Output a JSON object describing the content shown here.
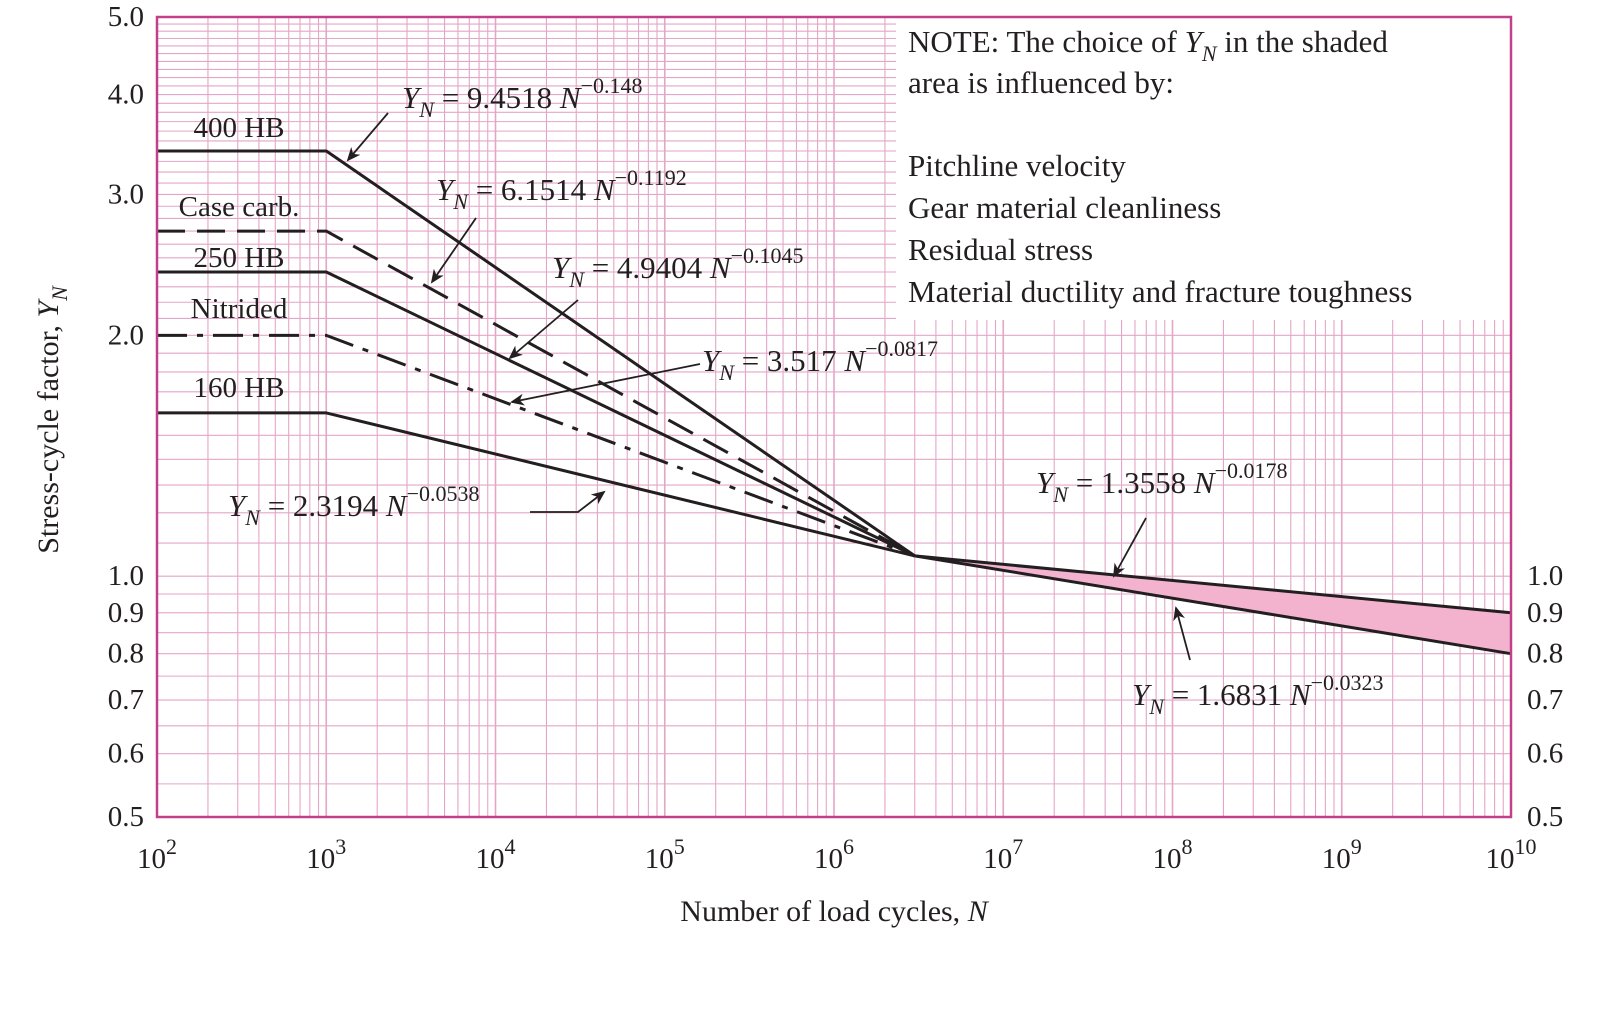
{
  "chart_data": {
    "type": "line",
    "xscale": "log",
    "yscale": "log",
    "xlim": [
      100,
      10000000000
    ],
    "ylim": [
      0.5,
      5.0
    ],
    "xlabel_text": "Number of load cycles, ",
    "xlabel_var": "N",
    "ylabel_text": "Stress-cycle factor, ",
    "ylabel_var": "Y",
    "ylabel_sub": "N",
    "x_ticks": [
      {
        "value": 100,
        "base": "10",
        "exp": "2"
      },
      {
        "value": 1000,
        "base": "10",
        "exp": "3"
      },
      {
        "value": 10000,
        "base": "10",
        "exp": "4"
      },
      {
        "value": 100000,
        "base": "10",
        "exp": "5"
      },
      {
        "value": 1000000,
        "base": "10",
        "exp": "6"
      },
      {
        "value": 10000000,
        "base": "10",
        "exp": "7"
      },
      {
        "value": 100000000,
        "base": "10",
        "exp": "8"
      },
      {
        "value": 1000000000,
        "base": "10",
        "exp": "9"
      },
      {
        "value": 10000000000,
        "base": "10",
        "exp": "10"
      }
    ],
    "y_ticks_left": [
      {
        "value": 5.0,
        "label": "5.0"
      },
      {
        "value": 4.0,
        "label": "4.0"
      },
      {
        "value": 3.0,
        "label": "3.0"
      },
      {
        "value": 2.0,
        "label": "2.0"
      },
      {
        "value": 1.0,
        "label": "1.0"
      },
      {
        "value": 0.9,
        "label": "0.9"
      },
      {
        "value": 0.8,
        "label": "0.8"
      },
      {
        "value": 0.7,
        "label": "0.7"
      },
      {
        "value": 0.6,
        "label": "0.6"
      },
      {
        "value": 0.5,
        "label": "0.5"
      }
    ],
    "y_ticks_right": [
      {
        "value": 1.0,
        "label": "1.0"
      },
      {
        "value": 0.9,
        "label": "0.9"
      },
      {
        "value": 0.8,
        "label": "0.8"
      },
      {
        "value": 0.7,
        "label": "0.7"
      },
      {
        "value": 0.6,
        "label": "0.6"
      },
      {
        "value": 0.5,
        "label": "0.5"
      }
    ],
    "grid": true,
    "series": [
      {
        "name": "400 HB",
        "style": "solid",
        "x": [
          100,
          1000,
          3000000
        ],
        "y": [
          3.4,
          3.4,
          1.06
        ]
      },
      {
        "name": "Case carb.",
        "style": "dashed",
        "x": [
          100,
          1000,
          3000000
        ],
        "y": [
          2.7,
          2.7,
          1.06
        ]
      },
      {
        "name": "250 HB",
        "style": "solid",
        "x": [
          100,
          1000,
          3000000
        ],
        "y": [
          2.4,
          2.4,
          1.06
        ]
      },
      {
        "name": "Nitrided",
        "style": "dashdot",
        "x": [
          100,
          1000,
          3000000
        ],
        "y": [
          2.0,
          2.0,
          1.06
        ]
      },
      {
        "name": "160 HB",
        "style": "solid",
        "x": [
          100,
          1000,
          3000000
        ],
        "y": [
          1.6,
          1.6,
          1.06
        ]
      },
      {
        "name": "",
        "style": "solid",
        "x": [
          3000000,
          10000000000
        ],
        "y": [
          1.06,
          0.9
        ]
      },
      {
        "name": "",
        "style": "solid",
        "x": [
          3000000,
          10000000000
        ],
        "y": [
          1.06,
          0.8
        ]
      }
    ],
    "shaded_region": {
      "x": [
        3000000,
        10000000000
      ],
      "y_upper": [
        1.06,
        0.9
      ],
      "y_lower": [
        1.06,
        0.8
      ]
    },
    "equations": [
      {
        "prefix": "Y",
        "sub": "N",
        "mid": " = 9.4518 ",
        "var": "N",
        "exp": "−0.148"
      },
      {
        "prefix": "Y",
        "sub": "N",
        "mid": " = 6.1514 ",
        "var": "N",
        "exp": "−0.1192"
      },
      {
        "prefix": "Y",
        "sub": "N",
        "mid": " = 4.9404 ",
        "var": "N",
        "exp": "−0.1045"
      },
      {
        "prefix": "Y",
        "sub": "N",
        "mid": " = 3.517 ",
        "var": "N",
        "exp": "−0.0817"
      },
      {
        "prefix": "Y",
        "sub": "N",
        "mid": " = 2.3194 ",
        "var": "N",
        "exp": "−0.0538"
      },
      {
        "prefix": "Y",
        "sub": "N",
        "mid": " = 1.3558 ",
        "var": "N",
        "exp": "−0.0178"
      },
      {
        "prefix": "Y",
        "sub": "N",
        "mid": " = 1.6831 ",
        "var": "N",
        "exp": "−0.0323"
      }
    ],
    "note": {
      "line1_a": "NOTE:   The choice of ",
      "line1_var": "Y",
      "line1_sub": "N",
      "line1_b": " in the shaded",
      "line2": "area is influenced by:",
      "items": [
        "Pitchline velocity",
        "Gear material cleanliness",
        "Residual stress",
        "Material ductility and fracture toughness"
      ]
    },
    "colors": {
      "grid": "#e4a6c6",
      "frame": "#c2408a",
      "shade": "#f3b3cf",
      "ink": "#231f20"
    }
  }
}
